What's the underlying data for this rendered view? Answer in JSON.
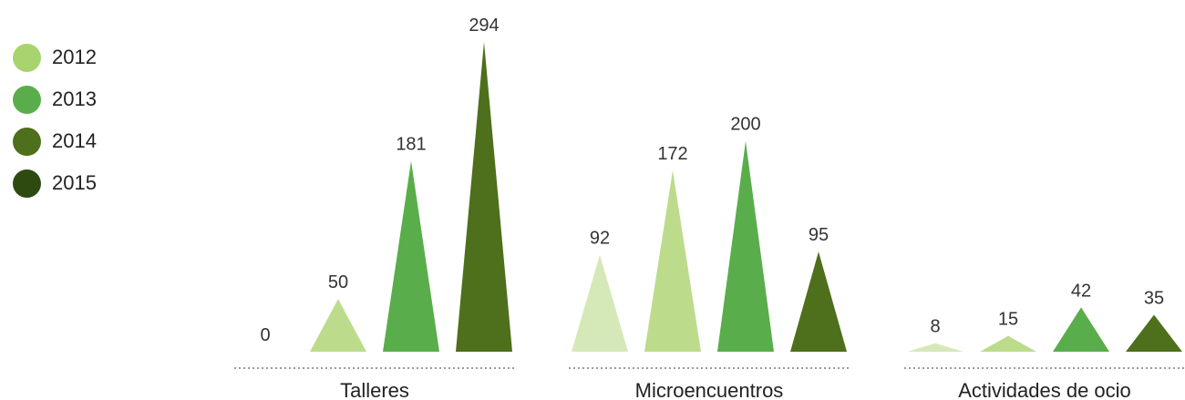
{
  "chart_data": {
    "type": "bar",
    "bar_shape": "triangle",
    "categories": [
      "Talleres",
      "Microencuentros",
      "Actividades de ocio"
    ],
    "series": [
      {
        "name": "2012",
        "values": [
          0,
          92,
          8
        ]
      },
      {
        "name": "2013",
        "values": [
          50,
          172,
          15
        ]
      },
      {
        "name": "2014",
        "values": [
          181,
          200,
          42
        ]
      },
      {
        "name": "2015",
        "values": [
          294,
          95,
          35
        ]
      }
    ],
    "legend_position": "top-left",
    "ylim": [
      0,
      294
    ],
    "grid": false
  },
  "palette": {
    "Talleres": [
      "#bcdc8c",
      "#bcdc8c",
      "#5aad4b",
      "#4e6f1b"
    ],
    "Microencuentros": [
      "#d5e9b8",
      "#bcdc8c",
      "#5aad4b",
      "#4e6f1b"
    ],
    "Actividades de ocio": [
      "#d5e9b8",
      "#bcdc8c",
      "#5aad4b",
      "#4e6f1b"
    ]
  },
  "legend": {
    "items": [
      {
        "label": "2012",
        "color": "#a8d46f"
      },
      {
        "label": "2013",
        "color": "#5aad4b"
      },
      {
        "label": "2014",
        "color": "#4e6f1b"
      },
      {
        "label": "2015",
        "color": "#2f4a10"
      }
    ]
  }
}
